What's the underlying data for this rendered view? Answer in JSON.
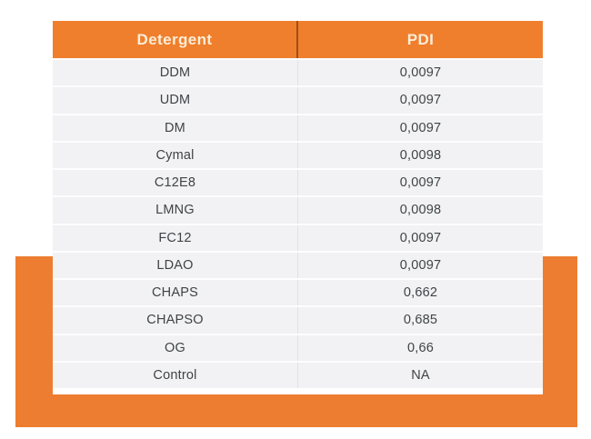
{
  "colors": {
    "panel_orange": "#ED7D31",
    "header_orange": "#EF7F2D",
    "header_text": "#FBEDD8",
    "header_divider": "#9E4F1C",
    "row_background": "#F2F2F4",
    "row_text": "#3F4347"
  },
  "chart_data": {
    "type": "table",
    "title": "",
    "columns": [
      "Detergent",
      "PDI"
    ],
    "rows": [
      [
        "DDM",
        "0,0097"
      ],
      [
        "UDM",
        "0,0097"
      ],
      [
        "DM",
        "0,0097"
      ],
      [
        "Cymal",
        "0,0098"
      ],
      [
        "C12E8",
        "0,0097"
      ],
      [
        "LMNG",
        "0,0098"
      ],
      [
        "FC12",
        "0,0097"
      ],
      [
        "LDAO",
        "0,0097"
      ],
      [
        "CHAPS",
        "0,662"
      ],
      [
        "CHAPSO",
        "0,685"
      ],
      [
        "OG",
        "0,66"
      ],
      [
        "Control",
        "NA"
      ]
    ]
  }
}
